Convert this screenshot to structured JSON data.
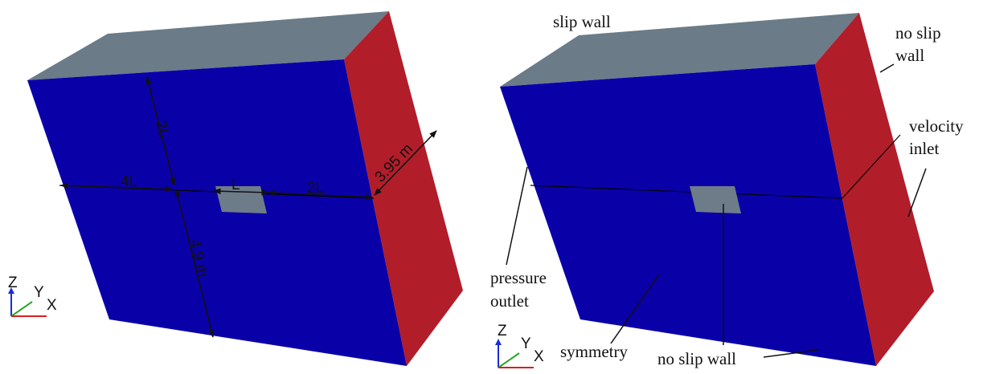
{
  "left_panel": {
    "dimensions": {
      "width_left": "4L",
      "plate_length": "L",
      "width_right": "2L",
      "height_top": "2L",
      "height_total": "4.9 m",
      "depth": "3.95 m"
    },
    "axes": {
      "z": "Z",
      "y": "Y",
      "x": "X"
    }
  },
  "right_panel": {
    "boundaries": {
      "top": "slip wall",
      "side_line1": "no slip",
      "side_line2": "wall",
      "inlet_line1": "velocity",
      "inlet_line2": "inlet",
      "outlet_line1": "pressure",
      "outlet_line2": "outlet",
      "front": "symmetry",
      "plate": "no slip wall"
    },
    "axes": {
      "z": "Z",
      "y": "Y",
      "x": "X"
    }
  },
  "colors": {
    "front_face": "#0a00a8",
    "top_face": "#6b7b88",
    "side_face": "#b21d2a",
    "plate": "#6e7c89"
  }
}
